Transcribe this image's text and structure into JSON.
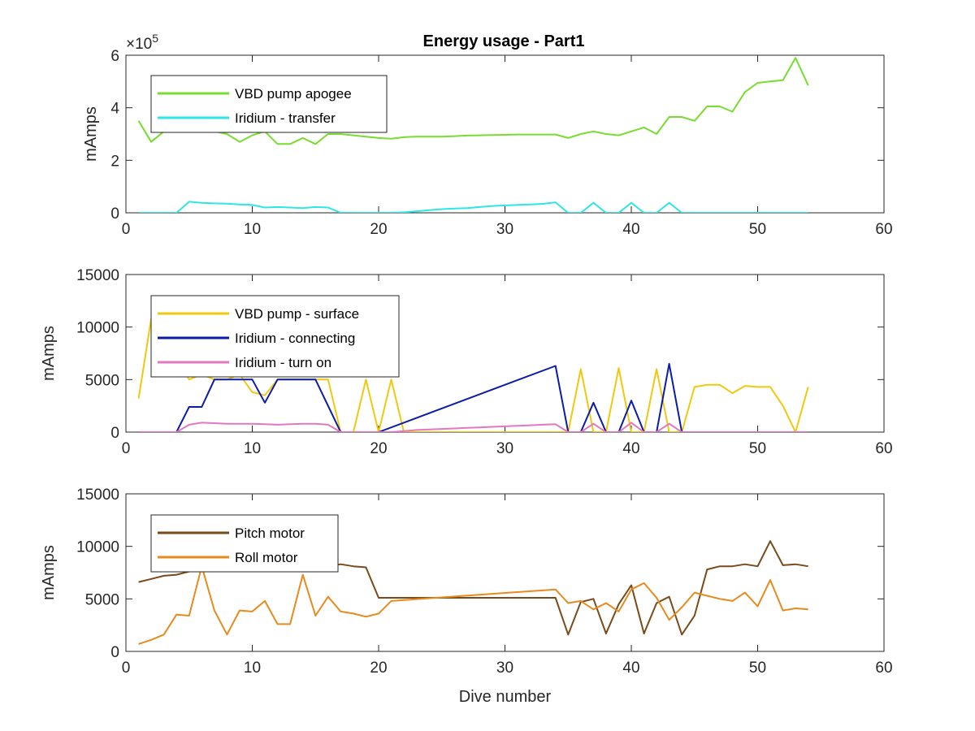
{
  "title": "Energy usage - Part1",
  "chart_data": [
    {
      "type": "line",
      "title": "Energy usage - Part1",
      "xlabel": "",
      "ylabel": "mAmps",
      "xlim": [
        0,
        60
      ],
      "ylim": [
        0,
        600000
      ],
      "xticks": [
        0,
        10,
        20,
        30,
        40,
        50,
        60
      ],
      "yticks": [
        0,
        2,
        4,
        6
      ],
      "y_exponent_label": "×10^5",
      "grid": false,
      "legend_position": "top-left",
      "series": [
        {
          "name": "VBD pump apogee",
          "color": "#77DD2E",
          "x": [
            1,
            2,
            3,
            4,
            5,
            6,
            7,
            8,
            9,
            10,
            11,
            12,
            13,
            14,
            15,
            16,
            17,
            18,
            19,
            20,
            21,
            22,
            23,
            24,
            25,
            26,
            27,
            28,
            29,
            30,
            31,
            32,
            33,
            34,
            35,
            36,
            37,
            38,
            39,
            40,
            41,
            42,
            43,
            44,
            45,
            46,
            47,
            48,
            49,
            50,
            51,
            52,
            53,
            54
          ],
          "y": [
            350000,
            270000,
            310000,
            310000,
            320000,
            325000,
            310000,
            300000,
            270000,
            295000,
            310000,
            262000,
            262000,
            285000,
            262000,
            300000,
            300000,
            295000,
            290000,
            285000,
            282000,
            288000,
            290000,
            290000,
            290000,
            292000,
            294000,
            295000,
            296000,
            297000,
            298000,
            298000,
            298000,
            298000,
            285000,
            300000,
            310000,
            300000,
            295000,
            310000,
            325000,
            300000,
            365000,
            365000,
            350000,
            405000,
            405000,
            385000,
            460000,
            495000,
            500000,
            505000,
            590000,
            485000
          ]
        },
        {
          "name": "Iridium - transfer",
          "color": "#2EE6E6",
          "x": [
            1,
            2,
            3,
            4,
            5,
            6,
            7,
            8,
            9,
            10,
            11,
            12,
            13,
            14,
            15,
            16,
            17,
            18,
            19,
            20,
            21,
            22,
            23,
            24,
            25,
            26,
            27,
            28,
            29,
            30,
            31,
            32,
            33,
            34,
            35,
            36,
            37,
            38,
            39,
            40,
            41,
            42,
            43,
            44,
            45,
            46,
            47,
            48,
            49,
            50,
            51,
            52,
            53,
            54
          ],
          "y": [
            0,
            0,
            0,
            0,
            42000,
            38000,
            36000,
            35000,
            32000,
            30000,
            20000,
            22000,
            20000,
            18000,
            22000,
            20000,
            0,
            0,
            0,
            0,
            0,
            2000,
            6000,
            10000,
            14000,
            16000,
            18000,
            22000,
            26000,
            28000,
            30000,
            32000,
            34000,
            40000,
            0,
            0,
            38000,
            0,
            0,
            38000,
            0,
            0,
            38000,
            0,
            0,
            0,
            0,
            0,
            0,
            0,
            0,
            0,
            0,
            0
          ]
        }
      ]
    },
    {
      "type": "line",
      "title": "",
      "xlabel": "",
      "ylabel": "mAmps",
      "xlim": [
        0,
        60
      ],
      "ylim": [
        0,
        15000
      ],
      "xticks": [
        0,
        10,
        20,
        30,
        40,
        50,
        60
      ],
      "yticks": [
        0,
        5000,
        10000,
        15000
      ],
      "grid": false,
      "legend_position": "top-left",
      "series": [
        {
          "name": "VBD pump - surface",
          "color": "#F2C80F",
          "x": [
            1,
            2,
            3,
            4,
            5,
            6,
            7,
            8,
            9,
            10,
            11,
            12,
            13,
            14,
            15,
            16,
            17,
            18,
            19,
            20,
            21,
            22,
            23,
            24,
            25,
            26,
            27,
            28,
            29,
            30,
            31,
            32,
            33,
            34,
            35,
            36,
            37,
            38,
            39,
            40,
            41,
            42,
            43,
            44,
            45,
            46,
            47,
            48,
            49,
            50,
            51,
            52,
            53,
            54
          ],
          "y": [
            3200,
            10800,
            8000,
            7000,
            5000,
            5500,
            5000,
            5000,
            5500,
            3800,
            3500,
            5000,
            5000,
            5000,
            5000,
            5000,
            0,
            0,
            5000,
            0,
            5000,
            0,
            0,
            0,
            0,
            0,
            0,
            0,
            0,
            0,
            0,
            0,
            0,
            0,
            0,
            6000,
            0,
            0,
            6100,
            0,
            0,
            6000,
            0,
            0,
            4300,
            4500,
            4500,
            3700,
            4400,
            4300,
            4300,
            2500,
            0,
            4300
          ]
        },
        {
          "name": "Iridium - connecting",
          "color": "#0A1CA8",
          "x": [
            1,
            2,
            3,
            4,
            5,
            6,
            7,
            8,
            9,
            10,
            11,
            12,
            13,
            14,
            15,
            16,
            17,
            20,
            34,
            35,
            36,
            37,
            38,
            39,
            40,
            41,
            42,
            43,
            44,
            45,
            46,
            47,
            48,
            49,
            50,
            51,
            52,
            53,
            54
          ],
          "y": [
            0,
            0,
            0,
            0,
            2400,
            2400,
            5000,
            5000,
            5000,
            5000,
            2800,
            5000,
            5000,
            5000,
            5000,
            2500,
            0,
            0,
            6300,
            0,
            0,
            2800,
            0,
            0,
            3000,
            0,
            0,
            6500,
            0,
            0,
            0,
            0,
            0,
            0,
            0,
            0,
            0,
            0,
            0
          ]
        },
        {
          "name": "Iridium - turn on",
          "color": "#E377C2",
          "x": [
            1,
            2,
            3,
            4,
            5,
            6,
            7,
            8,
            9,
            10,
            11,
            12,
            13,
            14,
            15,
            16,
            17,
            18,
            19,
            20,
            21,
            22,
            23,
            24,
            25,
            26,
            27,
            28,
            29,
            30,
            31,
            32,
            33,
            34,
            35,
            36,
            37,
            38,
            39,
            40,
            41,
            42,
            43,
            44,
            45,
            46,
            47,
            48,
            49,
            50,
            51,
            52,
            53,
            54
          ],
          "y": [
            0,
            0,
            0,
            0,
            700,
            900,
            850,
            800,
            800,
            800,
            750,
            700,
            750,
            800,
            800,
            700,
            0,
            0,
            0,
            0,
            0,
            100,
            200,
            250,
            300,
            350,
            400,
            450,
            500,
            550,
            600,
            650,
            700,
            750,
            0,
            0,
            800,
            0,
            0,
            900,
            0,
            0,
            800,
            0,
            0,
            0,
            0,
            0,
            0,
            0,
            0,
            0,
            0,
            0
          ]
        }
      ]
    },
    {
      "type": "line",
      "title": "",
      "xlabel": "Dive number",
      "ylabel": "mAmps",
      "xlim": [
        0,
        60
      ],
      "ylim": [
        0,
        15000
      ],
      "xticks": [
        0,
        10,
        20,
        30,
        40,
        50,
        60
      ],
      "yticks": [
        0,
        5000,
        10000,
        15000
      ],
      "grid": false,
      "legend_position": "top-left",
      "series": [
        {
          "name": "Pitch motor",
          "color": "#7A4A1A",
          "x": [
            1,
            2,
            3,
            4,
            5,
            6,
            7,
            8,
            9,
            10,
            11,
            12,
            13,
            14,
            15,
            16,
            17,
            18,
            19,
            20,
            21,
            22,
            34,
            35,
            36,
            37,
            38,
            39,
            40,
            41,
            42,
            43,
            44,
            45,
            46,
            47,
            48,
            49,
            50,
            51,
            52,
            53,
            54
          ],
          "y": [
            6600,
            6900,
            7200,
            7300,
            7600,
            7900,
            8000,
            8000,
            8200,
            8300,
            8300,
            8200,
            8200,
            8300,
            8200,
            8100,
            8300,
            8100,
            8000,
            5100,
            5100,
            5100,
            5100,
            1600,
            4700,
            5000,
            1700,
            4500,
            6300,
            1700,
            4600,
            5200,
            1600,
            3400,
            7800,
            8100,
            8100,
            8300,
            8100,
            10500,
            8200,
            8300,
            8100
          ]
        },
        {
          "name": "Roll motor",
          "color": "#E88A1E",
          "x": [
            1,
            2,
            3,
            4,
            5,
            6,
            7,
            8,
            9,
            10,
            11,
            12,
            13,
            14,
            15,
            16,
            17,
            18,
            19,
            20,
            21,
            34,
            35,
            36,
            37,
            38,
            39,
            40,
            41,
            42,
            43,
            44,
            45,
            46,
            47,
            48,
            49,
            50,
            51,
            52,
            53,
            54
          ],
          "y": [
            700,
            1100,
            1600,
            3500,
            3400,
            8100,
            3900,
            1600,
            3900,
            3800,
            4800,
            2600,
            2600,
            7300,
            3400,
            5200,
            3800,
            3600,
            3300,
            3600,
            4800,
            5900,
            4600,
            4800,
            4000,
            4600,
            3800,
            5900,
            6500,
            5100,
            3000,
            4200,
            5600,
            5300,
            5000,
            4800,
            5600,
            4300,
            6800,
            3900,
            4100,
            4000
          ]
        }
      ]
    }
  ]
}
